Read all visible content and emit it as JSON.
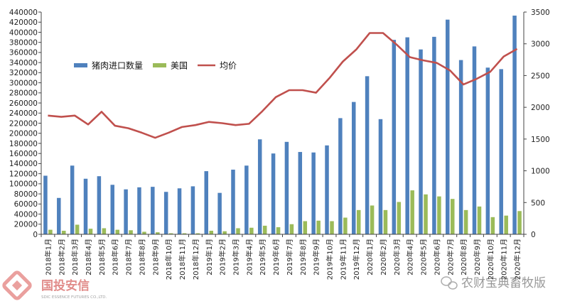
{
  "chart_data": {
    "type": "bar",
    "title": "",
    "xlabel": "",
    "ylabel": "",
    "categories": [
      "2018年1月",
      "2018年2月",
      "2018年3月",
      "2018年4月",
      "2018年5月",
      "2018年6月",
      "2018年7月",
      "2018年8月",
      "2018年9月",
      "2018年10月",
      "2018年11月",
      "2018年12月",
      "2019年1月",
      "2019年2月",
      "2019年3月",
      "2019年4月",
      "2019年5月",
      "2019年6月",
      "2019年7月",
      "2019年8月",
      "2019年9月",
      "2019年10月",
      "2019年11月",
      "2019年12月",
      "2020年1月",
      "2020年2月",
      "2020年3月",
      "2020年4月",
      "2020年5月",
      "2020年6月",
      "2020年7月",
      "2020年8月",
      "2020年9月",
      "2020年10月",
      "2020年11月",
      "2020年12月"
    ],
    "series": [
      {
        "name": "猪肉进口数量",
        "type": "bar",
        "axis": "left",
        "color": "#4f81bd",
        "values": [
          116000,
          72000,
          136000,
          110000,
          115000,
          98000,
          89000,
          93000,
          94000,
          84000,
          91000,
          95000,
          125000,
          82000,
          128000,
          136000,
          188000,
          160000,
          183000,
          163000,
          162000,
          176000,
          230000,
          262000,
          313000,
          228000,
          385000,
          390000,
          366000,
          391000,
          425000,
          345000,
          372000,
          330000,
          327000,
          433000
        ]
      },
      {
        "name": "美国",
        "type": "bar",
        "axis": "left",
        "color": "#9bbb59",
        "values": [
          9000,
          7000,
          19000,
          11000,
          12000,
          9000,
          8000,
          5000,
          4000,
          2000,
          2000,
          2000,
          7000,
          6000,
          12000,
          13000,
          17000,
          14000,
          20000,
          26000,
          27000,
          26000,
          33000,
          48000,
          57000,
          48000,
          64000,
          87000,
          79000,
          75000,
          70000,
          48000,
          55000,
          34000,
          37000,
          46000
        ]
      },
      {
        "name": "均价",
        "type": "line",
        "axis": "right",
        "color": "#c0504d",
        "values": [
          1870,
          1850,
          1870,
          1730,
          1930,
          1710,
          1670,
          1600,
          1520,
          1600,
          1690,
          1720,
          1770,
          1750,
          1720,
          1740,
          1940,
          2160,
          2270,
          2270,
          2230,
          2460,
          2720,
          2910,
          3170,
          3170,
          2990,
          2790,
          2740,
          2700,
          2580,
          2360,
          2450,
          2560,
          2800,
          2920
        ]
      }
    ],
    "ylim": [
      0,
      440000
    ],
    "y_ticks": [
      "0",
      "20000",
      "40000",
      "60000",
      "80000",
      "100000",
      "120000",
      "140000",
      "160000",
      "180000",
      "200000",
      "220000",
      "240000",
      "260000",
      "280000",
      "300000",
      "320000",
      "340000",
      "360000",
      "380000",
      "400000",
      "420000",
      "440000"
    ],
    "y2lim": [
      0,
      3500
    ],
    "y2_ticks": [
      "0",
      "500",
      "1000",
      "1500",
      "2000",
      "2500",
      "3000",
      "3500"
    ],
    "grid": false,
    "legend_position": "top-left inside"
  },
  "watermark": {
    "company_cn": "国投安信",
    "company_en": "SDIC ESSENCE FUTURES CO.,LTD.",
    "wechat_account": "农财宝典畜牧版"
  }
}
